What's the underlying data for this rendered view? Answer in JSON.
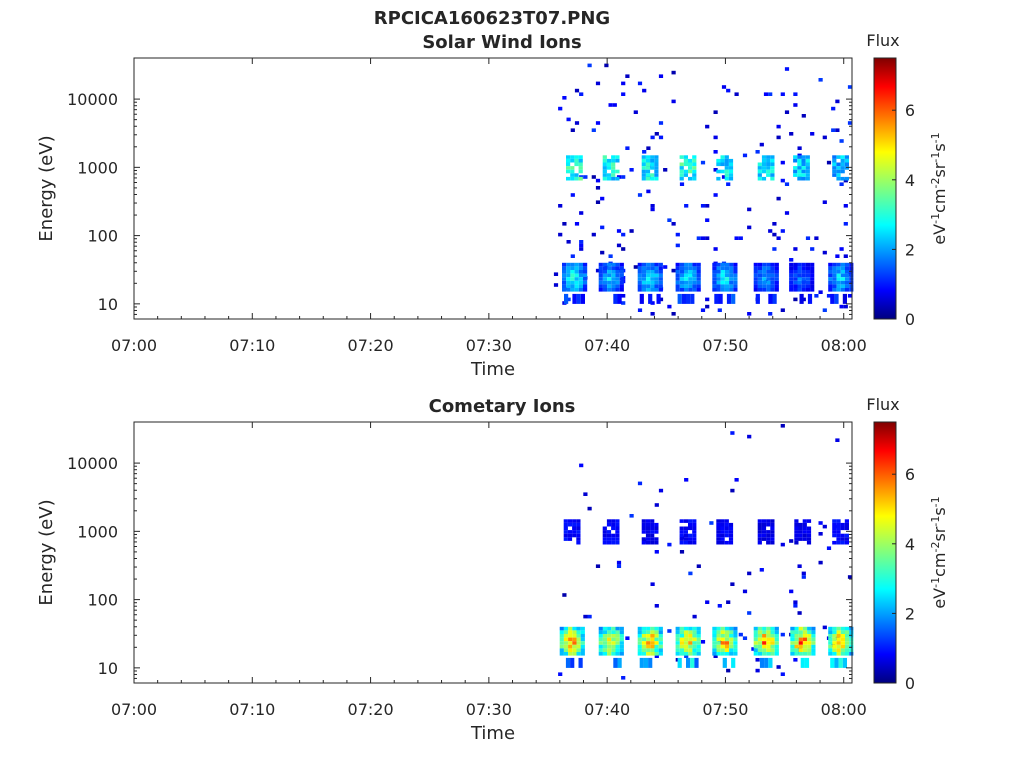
{
  "figure": {
    "title": "RPCICA160623T07.PNG"
  },
  "chart_data": [
    {
      "type": "heatmap",
      "title": "Solar Wind Ions",
      "xlabel": "Time",
      "ylabel": "Energy (eV)",
      "x_ticks": [
        "07:00",
        "07:10",
        "07:20",
        "07:30",
        "07:40",
        "07:50",
        "08:00"
      ],
      "x_range_minutes": [
        0,
        60.7
      ],
      "y_scale": "log",
      "y_ticks": [
        "10",
        "100",
        "1000",
        "10000"
      ],
      "y_range": [
        6,
        40000
      ],
      "colorbar": {
        "label": "Flux",
        "unit_label": "eV-1cm-2sr-1s-1",
        "ticks": [
          "0",
          "2",
          "4",
          "6"
        ],
        "range": [
          0,
          7.5
        ],
        "colormap": "jet"
      },
      "data_start_minute": 35.5,
      "bursts": [
        {
          "minute": 37.2,
          "low_energy_flux": 3.4,
          "keV_flux": 3.2
        },
        {
          "minute": 40.3,
          "low_energy_flux": 2.8,
          "keV_flux": 3.0
        },
        {
          "minute": 43.6,
          "low_energy_flux": 3.2,
          "keV_flux": 2.9
        },
        {
          "minute": 46.8,
          "low_energy_flux": 3.0,
          "keV_flux": 3.3
        },
        {
          "minute": 49.9,
          "low_energy_flux": 3.1,
          "keV_flux": 2.8
        },
        {
          "minute": 53.4,
          "low_energy_flux": 2.4,
          "keV_flux": 2.7
        },
        {
          "minute": 56.4,
          "low_energy_flux": 2.0,
          "keV_flux": 2.6
        },
        {
          "minute": 59.7,
          "low_energy_flux": 2.9,
          "keV_flux": 2.5
        }
      ]
    },
    {
      "type": "heatmap",
      "title": "Cometary Ions",
      "xlabel": "Time",
      "ylabel": "Energy (eV)",
      "x_ticks": [
        "07:00",
        "07:10",
        "07:20",
        "07:30",
        "07:40",
        "07:50",
        "08:00"
      ],
      "x_range_minutes": [
        0,
        60.7
      ],
      "y_scale": "log",
      "y_ticks": [
        "10",
        "100",
        "1000",
        "10000"
      ],
      "y_range": [
        6,
        40000
      ],
      "colorbar": {
        "label": "Flux",
        "unit_label": "eV-1cm-2sr-1s-1",
        "ticks": [
          "0",
          "2",
          "4",
          "6"
        ],
        "range": [
          0,
          7.5
        ],
        "colormap": "jet"
      },
      "data_start_minute": 35.5,
      "bursts": [
        {
          "minute": 37.0,
          "low_energy_flux": 6.0,
          "keV_flux": 1.0
        },
        {
          "minute": 40.3,
          "low_energy_flux": 5.6,
          "keV_flux": 1.0
        },
        {
          "minute": 43.6,
          "low_energy_flux": 6.2,
          "keV_flux": 0.9
        },
        {
          "minute": 46.8,
          "low_energy_flux": 5.8,
          "keV_flux": 1.0
        },
        {
          "minute": 49.9,
          "low_energy_flux": 5.9,
          "keV_flux": 0.9
        },
        {
          "minute": 53.4,
          "low_energy_flux": 6.1,
          "keV_flux": 0.8
        },
        {
          "minute": 56.5,
          "low_energy_flux": 6.4,
          "keV_flux": 0.8
        },
        {
          "minute": 59.7,
          "low_energy_flux": 5.9,
          "keV_flux": 1.0
        }
      ]
    }
  ]
}
